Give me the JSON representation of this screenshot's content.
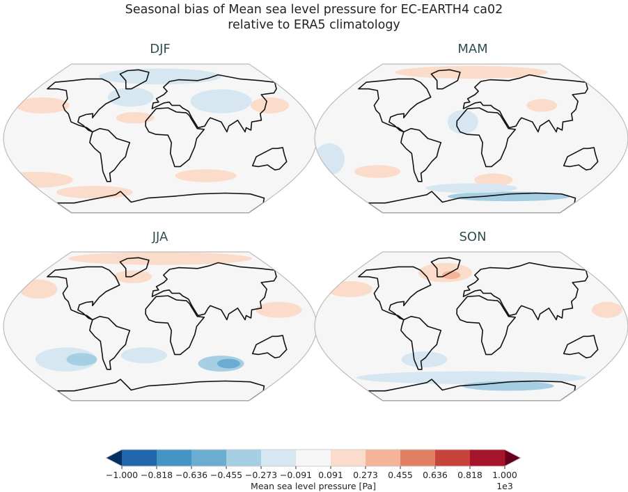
{
  "title_line1": "Seasonal bias of Mean sea level pressure for EC-EARTH4 ca02",
  "title_line2": "relative to ERA5 climatology",
  "chart_data": {
    "type": "heatmap",
    "panels": [
      {
        "title": "DJF",
        "description_regions": {
          "positive": [
            "North Pacific",
            "Southern Ocean (Pacific sector)",
            "Atlantic subtropics"
          ],
          "negative": [
            "Arctic",
            "Eurasia",
            "North Atlantic"
          ]
        }
      },
      {
        "title": "MAM",
        "description_regions": {
          "positive": [
            "Arctic / Greenland",
            "Central Asia",
            "South Pacific"
          ],
          "negative": [
            "Antarctica",
            "Southern Ocean"
          ]
        }
      },
      {
        "title": "JJA",
        "description_regions": {
          "positive": [
            "Arctic",
            "North Pacific",
            "North Atlantic"
          ],
          "negative": [
            "South Pacific",
            "South Indian Ocean"
          ]
        }
      },
      {
        "title": "SON",
        "description_regions": {
          "positive": [
            "Greenland / North Atlantic",
            "Pacific"
          ],
          "negative": [
            "Southern Ocean",
            "Antarctica"
          ]
        }
      }
    ],
    "colorbar": {
      "label": "Mean sea level pressure [Pa]",
      "multiplier": "1e3",
      "ticks": [
        "−1.000",
        "−0.818",
        "−0.636",
        "−0.455",
        "−0.273",
        "−0.091",
        "0.091",
        "0.273",
        "0.455",
        "0.636",
        "0.818",
        "1.000"
      ],
      "range": [
        -1000,
        1000
      ],
      "extend": "both",
      "colors": [
        "#053061",
        "#2166ac",
        "#4393c3",
        "#6bacd1",
        "#a7cfe4",
        "#d6e7f1",
        "#f6f6f6",
        "#fbdbc9",
        "#f5b497",
        "#e27e64",
        "#c7443d",
        "#a51429",
        "#67001f"
      ]
    }
  }
}
